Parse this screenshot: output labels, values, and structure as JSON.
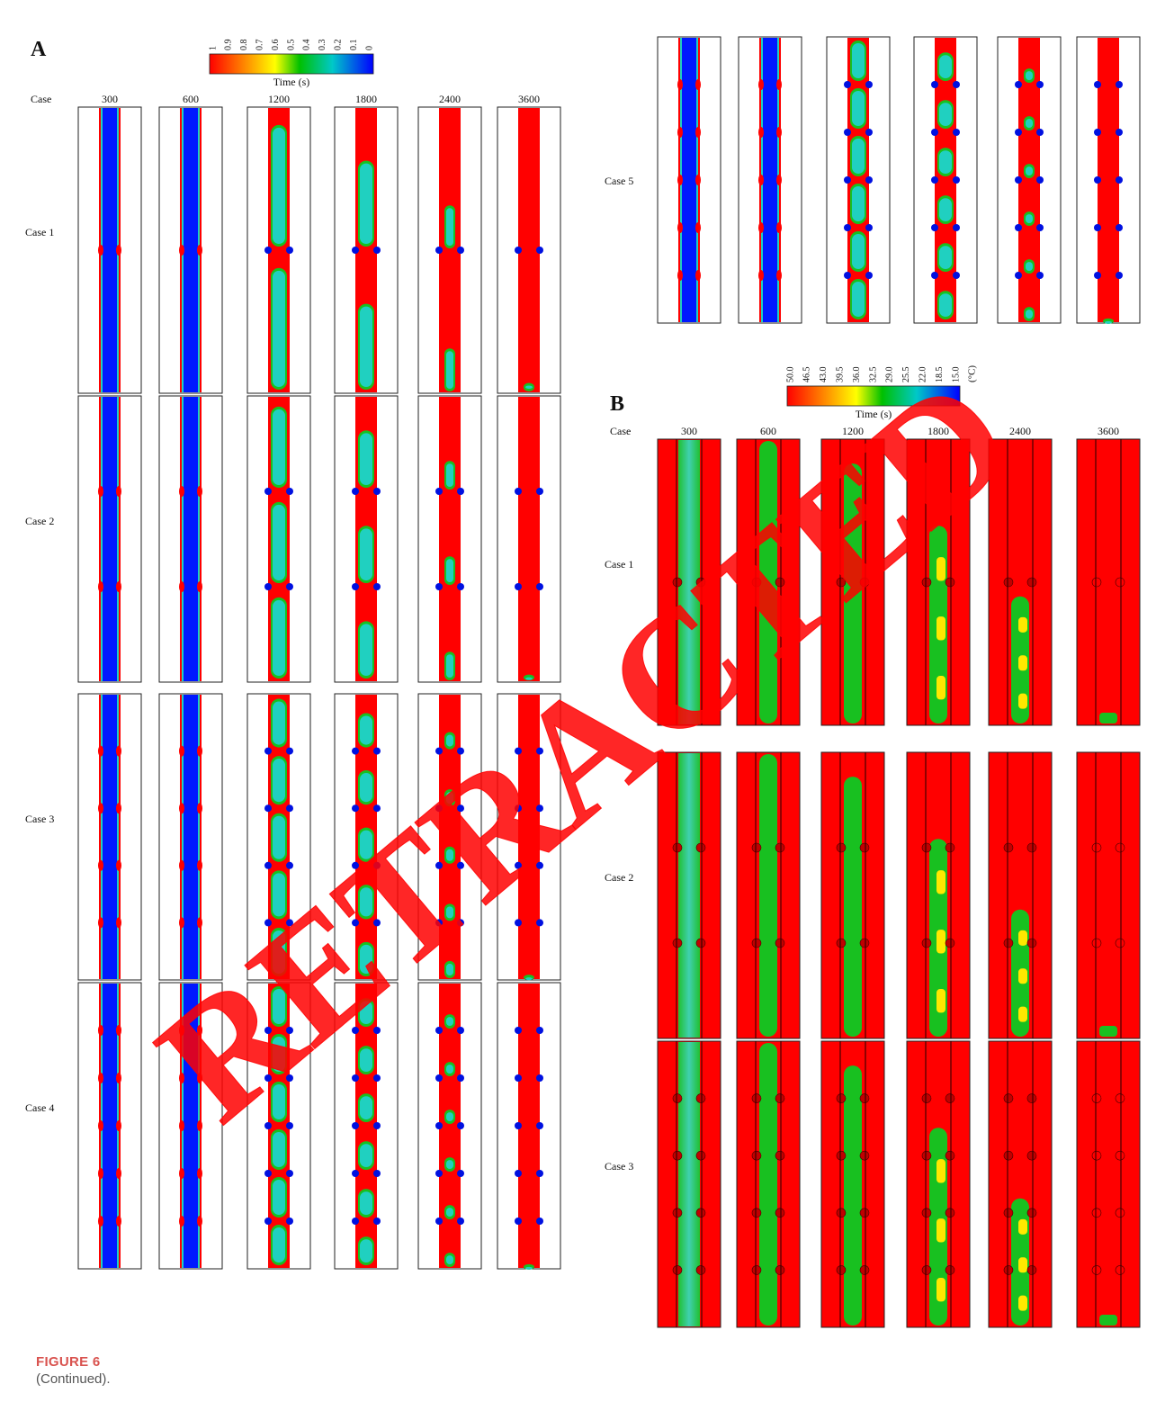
{
  "panelA": {
    "label": "A",
    "colorbar": {
      "ticks": [
        "1",
        "0.9",
        "0.8",
        "0.7",
        "0.6",
        "0.5",
        "0.4",
        "0.3",
        "0.2",
        "0.1",
        "0"
      ],
      "colors": [
        "#ff0000",
        "#ff7f00",
        "#ffff00",
        "#00c000",
        "#00c8c8",
        "#0000ff"
      ],
      "title": "Time (s)"
    },
    "caseHeader": "Case",
    "times": [
      "300",
      "600",
      "1200",
      "1800",
      "2400",
      "3600"
    ],
    "cases": [
      "Case 1",
      "Case 2",
      "Case 3",
      "Case 4"
    ]
  },
  "panelA5": {
    "case": "Case 5"
  },
  "panelB": {
    "label": "B",
    "colorbar": {
      "ticks": [
        "50.0",
        "46.5",
        "43.0",
        "39.5",
        "36.0",
        "32.5",
        "29.0",
        "25.5",
        "22.0",
        "18.5",
        "15.0"
      ],
      "unit": "(°C)",
      "colors": [
        "#ff0000",
        "#ff7f00",
        "#ffff00",
        "#00c000",
        "#00c8c8",
        "#0000ff"
      ],
      "title": "Time (s)"
    },
    "caseHeader": "Case",
    "times": [
      "300",
      "600",
      "1200",
      "1800",
      "2400",
      "3600"
    ],
    "cases": [
      "Case 1",
      "Case 2",
      "Case 3"
    ]
  },
  "watermark": "RETRACTED",
  "caption": {
    "label": "FIGURE 6",
    "text": "(Continued)."
  }
}
